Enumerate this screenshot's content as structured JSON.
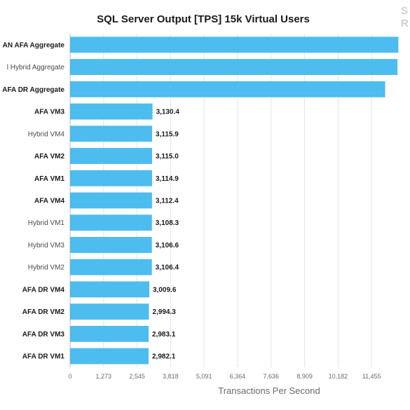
{
  "logo": {
    "line1": "S",
    "line2": "R"
  },
  "chart_data": {
    "type": "bar",
    "orientation": "horizontal",
    "title": "SQL Server Output [TPS] 15k Virtual Users",
    "xlabel": "Transactions Per Second",
    "ylabel": "",
    "xlim": [
      0,
      12728
    ],
    "xticks": [
      "0",
      "1,273",
      "2,545",
      "3,818",
      "5,091",
      "6,364",
      "7,636",
      "8,909",
      "10,182",
      "11,455"
    ],
    "grid": true,
    "bar_color": "#4dbcee",
    "categories": [
      "AN AFA Aggregate",
      "l Hybrid Aggregate",
      "AFA DR Aggregate",
      "AFA VM3",
      "Hybrid VM4",
      "AFA VM2",
      "AFA VM1",
      "AFA VM4",
      "Hybrid VM1",
      "Hybrid VM3",
      "Hybrid VM2",
      "AFA DR VM4",
      "AFA DR VM2",
      "AFA DR VM3",
      "AFA DR VM1"
    ],
    "muted": [
      false,
      true,
      false,
      false,
      true,
      false,
      false,
      false,
      true,
      true,
      true,
      false,
      false,
      false,
      false
    ],
    "values": [
      12473.0,
      12437.2,
      11969.1,
      3130.4,
      3115.9,
      3115.0,
      3114.9,
      3112.4,
      3108.3,
      3106.6,
      3106.4,
      3009.6,
      2994.3,
      2983.1,
      2982.1
    ],
    "value_labels": [
      "",
      "",
      "",
      "3,130.4",
      "3,115.9",
      "3,115.0",
      "3,114.9",
      "3,112.4",
      "3,108.3",
      "3,106.6",
      "3,106.4",
      "3,009.6",
      "2,994.3",
      "2,983.1",
      "2,982.1"
    ]
  }
}
